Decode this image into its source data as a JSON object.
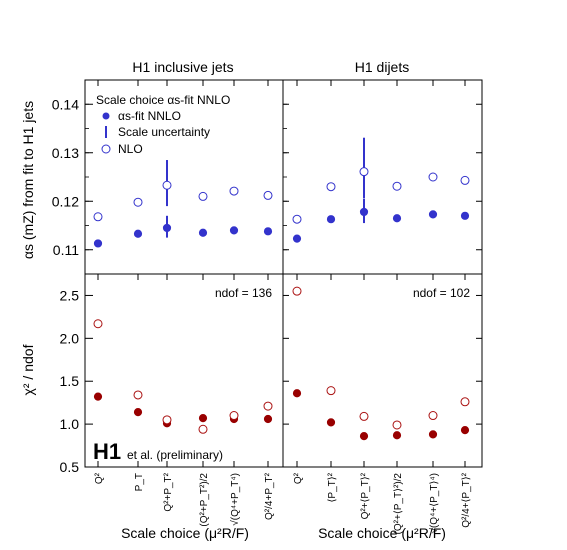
{
  "chart_data": [
    {
      "type": "scatter",
      "panel": "top-left",
      "title": "H1 inclusive jets",
      "ylabel": "αs (mZ) from fit to H1 jets",
      "ylim": [
        0.105,
        0.145
      ],
      "yticks": [
        0.11,
        0.12,
        0.13,
        0.14
      ],
      "legend_title": "Scale choice αs-fit NNLO",
      "legend": [
        "αs-fit NNLO",
        "Scale uncertainty",
        "NLO"
      ],
      "categories": [
        "Q²",
        "P_T",
        "Q²+P_T²",
        "(Q²+P_T²)/2",
        "√(Q⁴+P_T⁴)",
        "Q²/4+P_T²"
      ],
      "series": [
        {
          "name": "αs-fit NNLO",
          "values": [
            0.1113,
            0.1133,
            0.1145,
            0.1135,
            0.114,
            0.1138
          ],
          "err_lo": [
            null,
            null,
            0.002,
            null,
            null,
            null
          ],
          "err_hi": [
            null,
            null,
            0.0025,
            null,
            null,
            null
          ]
        },
        {
          "name": "NLO",
          "values": [
            0.1168,
            0.1198,
            0.1233,
            0.121,
            0.1221,
            0.1212
          ],
          "err_lo": [
            null,
            null,
            0.0043,
            null,
            null,
            null
          ],
          "err_hi": [
            null,
            null,
            0.0052,
            null,
            null,
            null
          ]
        }
      ]
    },
    {
      "type": "scatter",
      "panel": "top-right",
      "title": "H1 dijets",
      "ylim": [
        0.105,
        0.145
      ],
      "categories": [
        "Q²",
        "⟨P_T⟩²",
        "Q²+⟨P_T⟩²",
        "(Q²+⟨P_T⟩²)/2",
        "√(Q⁴+⟨P_T⟩⁴)",
        "Q²/4+⟨P_T⟩²"
      ],
      "series": [
        {
          "name": "αs-fit NNLO",
          "values": [
            0.1123,
            0.1163,
            0.1178,
            0.1165,
            0.1173,
            0.117
          ],
          "err_lo": [
            null,
            null,
            0.0023,
            null,
            null,
            null
          ],
          "err_hi": [
            null,
            null,
            0.0027,
            null,
            null,
            null
          ]
        },
        {
          "name": "NLO",
          "values": [
            0.1163,
            0.123,
            0.1261,
            0.1231,
            0.125,
            0.1243
          ],
          "err_lo": [
            null,
            null,
            0.0055,
            null,
            null,
            null
          ],
          "err_hi": [
            null,
            null,
            0.007,
            null,
            null,
            null
          ]
        }
      ]
    },
    {
      "type": "scatter",
      "panel": "bottom-left",
      "ylabel": "χ² / ndof",
      "ylim": [
        0.5,
        2.75
      ],
      "yticks": [
        0.5,
        1.0,
        1.5,
        2.0,
        2.5
      ],
      "ndof_label": "ndof = 136",
      "xlabel": "Scale choice (μ²R/F)",
      "categories": [
        "Q²",
        "P_T",
        "Q²+P_T²",
        "(Q²+P_T²)/2",
        "√(Q⁴+P_T⁴)",
        "Q²/4+P_T²"
      ],
      "series": [
        {
          "name": "αs-fit NNLO",
          "values": [
            1.32,
            1.14,
            1.01,
            1.07,
            1.06,
            1.06
          ]
        },
        {
          "name": "NLO",
          "values": [
            2.17,
            1.34,
            1.05,
            0.94,
            1.1,
            1.21
          ]
        }
      ]
    },
    {
      "type": "scatter",
      "panel": "bottom-right",
      "ylim": [
        0.5,
        2.75
      ],
      "ndof_label": "ndof = 102",
      "xlabel": "Scale choice (μ²R/F)",
      "categories": [
        "Q²",
        "⟨P_T⟩²",
        "Q²+⟨P_T⟩²",
        "(Q²+⟨P_T⟩²)/2",
        "√(Q⁴+⟨P_T⟩⁴)",
        "Q²/4+⟨P_T⟩²"
      ],
      "series": [
        {
          "name": "αs-fit NNLO",
          "values": [
            1.36,
            1.02,
            0.86,
            0.87,
            0.88,
            0.93
          ]
        },
        {
          "name": "NLO",
          "values": [
            2.55,
            1.39,
            1.09,
            0.99,
            1.1,
            1.26
          ]
        }
      ]
    }
  ],
  "footer": {
    "logo": "H1",
    "subtitle": "et al. (preliminary)"
  },
  "colors": {
    "nnlo": "#3333cc",
    "nlo_top": "#3333cc",
    "chi_nnlo": "#990000",
    "chi_nlo": "#aa1111"
  }
}
